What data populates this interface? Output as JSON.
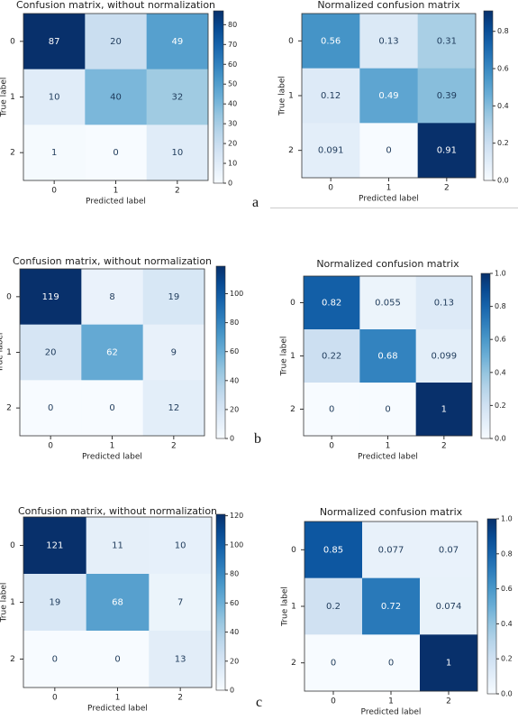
{
  "panels": [
    "a",
    "b",
    "c"
  ],
  "chart_data": [
    {
      "type": "heatmap",
      "title": "Confusion matrix, without normalization",
      "xlabel": "Predicted label",
      "ylabel": "True label",
      "x_ticks": [
        "0",
        "1",
        "2"
      ],
      "y_ticks": [
        "0",
        "1",
        "2"
      ],
      "values": [
        [
          87,
          20,
          49
        ],
        [
          10,
          40,
          32
        ],
        [
          1,
          0,
          10
        ]
      ],
      "cell_labels": [
        [
          "87",
          "20",
          "49"
        ],
        [
          "10",
          "40",
          "32"
        ],
        [
          "1",
          "0",
          "10"
        ]
      ],
      "colorbar": {
        "range": [
          0,
          87
        ],
        "ticks": [
          "0",
          "10",
          "20",
          "30",
          "40",
          "50",
          "60",
          "70",
          "80"
        ]
      },
      "colormap": "Blues"
    },
    {
      "type": "heatmap",
      "title": "Normalized confusion matrix",
      "xlabel": "Predicted label",
      "ylabel": "True label",
      "x_ticks": [
        "0",
        "1",
        "2"
      ],
      "y_ticks": [
        "0",
        "1",
        "2"
      ],
      "values": [
        [
          0.56,
          0.13,
          0.31
        ],
        [
          0.12,
          0.49,
          0.39
        ],
        [
          0.091,
          0,
          0.91
        ]
      ],
      "cell_labels": [
        [
          "0.56",
          "0.13",
          "0.31"
        ],
        [
          "0.12",
          "0.49",
          "0.39"
        ],
        [
          "0.091",
          "0",
          "0.91"
        ]
      ],
      "colorbar": {
        "range": [
          0,
          0.91
        ],
        "ticks": [
          "0.0",
          "0.2",
          "0.4",
          "0.6",
          "0.8"
        ]
      },
      "colormap": "Blues"
    },
    {
      "type": "heatmap",
      "title": "Confusion matrix, without normalization",
      "xlabel": "Predicted label",
      "ylabel": "True label",
      "x_ticks": [
        "0",
        "1",
        "2"
      ],
      "y_ticks": [
        "0",
        "1",
        "2"
      ],
      "values": [
        [
          119,
          8,
          19
        ],
        [
          20,
          62,
          9
        ],
        [
          0,
          0,
          12
        ]
      ],
      "cell_labels": [
        [
          "119",
          "8",
          "19"
        ],
        [
          "20",
          "62",
          "9"
        ],
        [
          "0",
          "0",
          "12"
        ]
      ],
      "colorbar": {
        "range": [
          0,
          119
        ],
        "ticks": [
          "0",
          "20",
          "40",
          "60",
          "80",
          "100"
        ]
      },
      "colormap": "Blues"
    },
    {
      "type": "heatmap",
      "title": "Normalized confusion matrix",
      "xlabel": "Predicted label",
      "ylabel": "True label",
      "x_ticks": [
        "0",
        "1",
        "2"
      ],
      "y_ticks": [
        "0",
        "1",
        "2"
      ],
      "values": [
        [
          0.82,
          0.055,
          0.13
        ],
        [
          0.22,
          0.68,
          0.099
        ],
        [
          0,
          0,
          1
        ]
      ],
      "cell_labels": [
        [
          "0.82",
          "0.055",
          "0.13"
        ],
        [
          "0.22",
          "0.68",
          "0.099"
        ],
        [
          "0",
          "0",
          "1"
        ]
      ],
      "colorbar": {
        "range": [
          0,
          1
        ],
        "ticks": [
          "0.0",
          "0.2",
          "0.4",
          "0.6",
          "0.8",
          "1.0"
        ]
      },
      "colormap": "Blues"
    },
    {
      "type": "heatmap",
      "title": "Confusion matrix, without normalization",
      "xlabel": "Predicted label",
      "ylabel": "True label",
      "x_ticks": [
        "0",
        "1",
        "2"
      ],
      "y_ticks": [
        "0",
        "1",
        "2"
      ],
      "values": [
        [
          121,
          11,
          10
        ],
        [
          19,
          68,
          7
        ],
        [
          0,
          0,
          13
        ]
      ],
      "cell_labels": [
        [
          "121",
          "11",
          "10"
        ],
        [
          "19",
          "68",
          "7"
        ],
        [
          "0",
          "0",
          "13"
        ]
      ],
      "colorbar": {
        "range": [
          0,
          121
        ],
        "ticks": [
          "0",
          "20",
          "40",
          "60",
          "80",
          "100",
          "120"
        ]
      },
      "colormap": "Blues"
    },
    {
      "type": "heatmap",
      "title": "Normalized confusion matrix",
      "xlabel": "Predicted label",
      "ylabel": "True label",
      "x_ticks": [
        "0",
        "1",
        "2"
      ],
      "y_ticks": [
        "0",
        "1",
        "2"
      ],
      "values": [
        [
          0.85,
          0.077,
          0.07
        ],
        [
          0.2,
          0.72,
          0.074
        ],
        [
          0,
          0,
          1
        ]
      ],
      "cell_labels": [
        [
          "0.85",
          "0.077",
          "0.07"
        ],
        [
          "0.2",
          "0.72",
          "0.074"
        ],
        [
          "0",
          "0",
          "1"
        ]
      ],
      "colorbar": {
        "range": [
          0,
          1
        ],
        "ticks": [
          "0.0",
          "0.2",
          "0.4",
          "0.6",
          "0.8",
          "1.0"
        ]
      },
      "colormap": "Blues"
    }
  ]
}
